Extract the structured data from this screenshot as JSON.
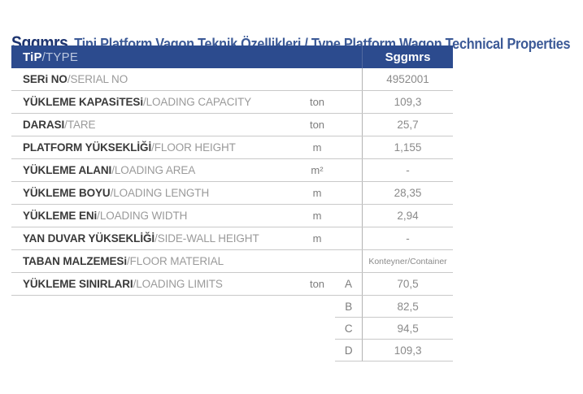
{
  "title": {
    "brand": "Sggmrs",
    "rest": "Tipi Platform Vagon Teknik Özellikleri / Type Platform Wagon Technical Properties"
  },
  "separator": " / ",
  "colors": {
    "header_bg": "#2c4b8e",
    "brand_text": "#1d3470",
    "subtitle_text": "#3c5a97",
    "label_text": "#3a3a3a",
    "secondary_text": "#9a9a9a",
    "value_text": "#8a8a8a",
    "divider": "#c9c9c9"
  },
  "table": {
    "header": {
      "tr": "TiP",
      "en": "TYPE",
      "value": "Sggmrs"
    },
    "rows": [
      {
        "tr": "SERi NO",
        "en": "SERIAL NO",
        "unit": "",
        "value": "4952001"
      },
      {
        "tr": "YÜKLEME KAPASiTESi",
        "en": "LOADING CAPACITY",
        "unit": "ton",
        "value": "109,3"
      },
      {
        "tr": "DARASI",
        "en": "TARE",
        "unit": "ton",
        "value": "25,7"
      },
      {
        "tr": "PLATFORM YÜKSEKLİĞİ",
        "en": "FLOOR HEIGHT",
        "unit": "m",
        "value": "1,155"
      },
      {
        "tr": "YÜKLEME ALANI",
        "en": "LOADING AREA",
        "unit": "m²",
        "value": "-"
      },
      {
        "tr": "YÜKLEME BOYU",
        "en": "LOADING LENGTH",
        "unit": "m",
        "value": "28,35"
      },
      {
        "tr": "YÜKLEME ENi",
        "en": "LOADING WIDTH",
        "unit": "m",
        "value": "2,94"
      },
      {
        "tr": "YAN DUVAR YÜKSEKLİĞİ",
        "en": "SIDE-WALL HEIGHT",
        "unit": "m",
        "value": "-"
      },
      {
        "tr": "TABAN MALZEMESi",
        "en": "FLOOR MATERIAL",
        "unit": "",
        "value": "Konteyner/Container"
      },
      {
        "tr": "YÜKLEME SINIRLARI",
        "en": "LOADING LIMITS",
        "unit": "ton",
        "letter": "A",
        "value": "70,5"
      }
    ],
    "sub_rows": [
      {
        "letter": "B",
        "value": "82,5"
      },
      {
        "letter": "C",
        "value": "94,5"
      },
      {
        "letter": "D",
        "value": "109,3"
      }
    ]
  }
}
